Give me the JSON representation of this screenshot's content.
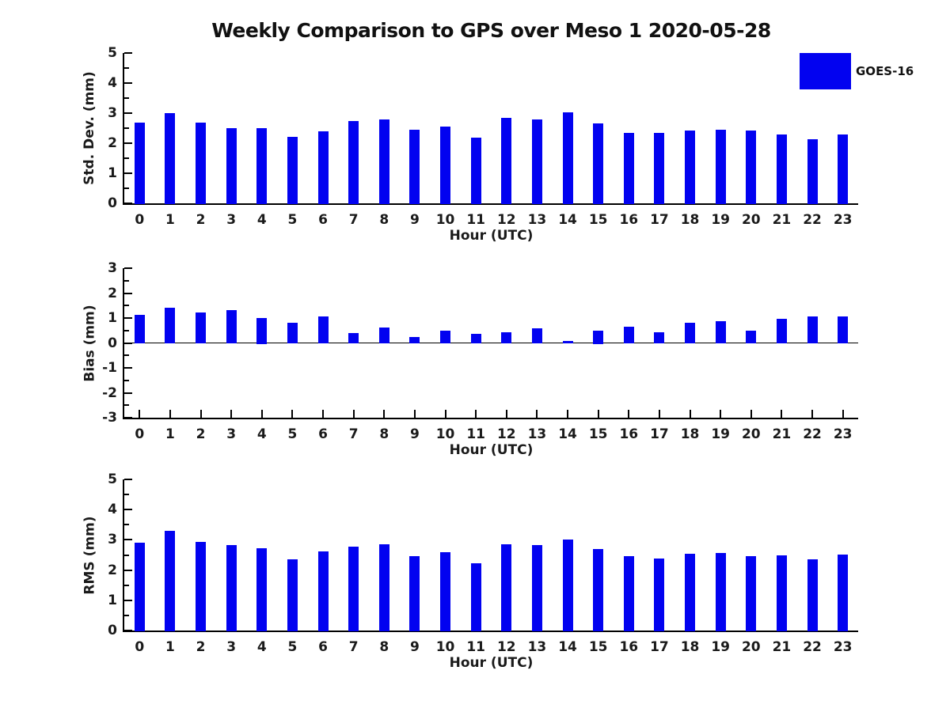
{
  "title": "Weekly Comparison to GPS over Meso 1 2020-05-28",
  "legend": {
    "label": "GOES-16",
    "color": "#0202f0",
    "position": "top-right"
  },
  "colors": {
    "bar": "#0202f0",
    "axis": "#000000",
    "text": "#1a1a1a",
    "background": "#ffffff"
  },
  "chart_data": [
    {
      "type": "bar",
      "series_name": "GOES-16",
      "ylabel": "Std. Dev. (mm)",
      "xlabel": "Hour (UTC)",
      "categories": [
        "0",
        "1",
        "2",
        "3",
        "4",
        "5",
        "6",
        "7",
        "8",
        "9",
        "10",
        "11",
        "12",
        "13",
        "14",
        "15",
        "16",
        "17",
        "18",
        "19",
        "20",
        "21",
        "22",
        "23"
      ],
      "values": [
        2.69,
        3.01,
        2.69,
        2.51,
        2.51,
        2.22,
        2.4,
        2.74,
        2.8,
        2.45,
        2.56,
        2.19,
        2.84,
        2.78,
        3.02,
        2.65,
        2.35,
        2.35,
        2.41,
        2.44,
        2.41,
        2.28,
        2.12,
        2.28
      ],
      "ylim": [
        0,
        5
      ],
      "yticks": [
        "0",
        "1",
        "2",
        "3",
        "4",
        "5"
      ],
      "grid": false
    },
    {
      "type": "bar",
      "series_name": "GOES-16",
      "ylabel": "Bias (mm)",
      "xlabel": "Hour (UTC)",
      "categories": [
        "0",
        "1",
        "2",
        "3",
        "4",
        "5",
        "6",
        "7",
        "8",
        "9",
        "10",
        "11",
        "12",
        "13",
        "14",
        "15",
        "16",
        "17",
        "18",
        "19",
        "20",
        "21",
        "22",
        "23"
      ],
      "values": [
        1.12,
        1.4,
        1.22,
        1.31,
        1.0,
        0.82,
        1.05,
        0.39,
        0.62,
        0.23,
        0.48,
        0.37,
        0.44,
        0.59,
        0.08,
        0.5,
        0.66,
        0.42,
        0.8,
        0.86,
        0.48,
        0.97,
        1.06,
        1.06
      ],
      "ylim": [
        -3,
        3
      ],
      "yticks": [
        "-3",
        "-2",
        "-1",
        "0",
        "1",
        "2",
        "3"
      ],
      "zero_line": true,
      "grid": false
    },
    {
      "type": "bar",
      "series_name": "GOES-16",
      "ylabel": "RMS (mm)",
      "xlabel": "Hour (UTC)",
      "categories": [
        "0",
        "1",
        "2",
        "3",
        "4",
        "5",
        "6",
        "7",
        "8",
        "9",
        "10",
        "11",
        "12",
        "13",
        "14",
        "15",
        "16",
        "17",
        "18",
        "19",
        "20",
        "21",
        "22",
        "23"
      ],
      "values": [
        2.9,
        3.31,
        2.93,
        2.83,
        2.71,
        2.36,
        2.62,
        2.77,
        2.85,
        2.46,
        2.6,
        2.22,
        2.85,
        2.84,
        3.01,
        2.7,
        2.47,
        2.38,
        2.54,
        2.57,
        2.47,
        2.49,
        2.35,
        2.51
      ],
      "ylim": [
        0,
        5
      ],
      "yticks": [
        "0",
        "1",
        "2",
        "3",
        "4",
        "5"
      ],
      "grid": false
    }
  ]
}
